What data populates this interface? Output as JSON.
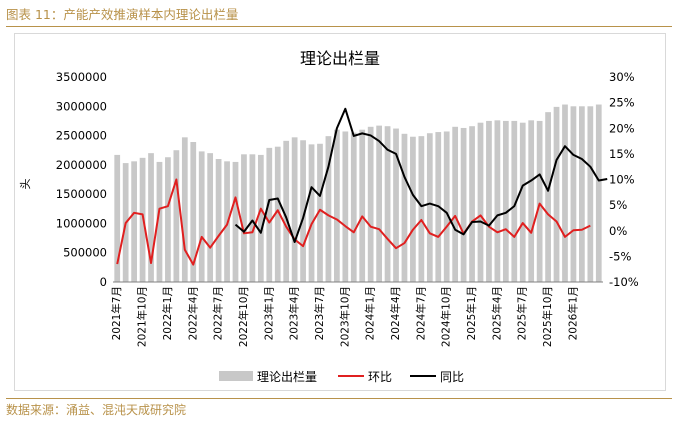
{
  "figure_caption": "图表 11：产能产效推演样本内理论出栏量",
  "source_note": "数据来源：涌益、混沌天成研究院",
  "chart_data": {
    "type": "bar+line",
    "title": "理论出栏量",
    "ylabel_left": "头",
    "y_left_range": [
      0,
      3500000
    ],
    "y_left_ticks": [
      "0",
      "500000",
      "1000000",
      "1500000",
      "2000000",
      "2500000",
      "3000000",
      "3500000"
    ],
    "y_right_range": [
      -10,
      30
    ],
    "y_right_ticks": [
      "-10%",
      "-5%",
      "0%",
      "5%",
      "10%",
      "15%",
      "20%",
      "25%",
      "30%"
    ],
    "x_tick_labels": [
      "2021年7月",
      "2021年10月",
      "2022年1月",
      "2022年4月",
      "2022年7月",
      "2022年10月",
      "2023年1月",
      "2023年4月",
      "2023年7月",
      "2023年10月",
      "2024年1月",
      "2024年4月",
      "2024年7月",
      "2024年10月",
      "2025年1月",
      "2025年4月",
      "2025年7月",
      "2025年10月",
      "2026年1月"
    ],
    "legend": [
      "理论出栏量",
      "环比",
      "同比"
    ],
    "colors": {
      "bar": "#c8c8c8",
      "mom": "#e02020",
      "yoy": "#000000"
    },
    "series": [
      {
        "name": "理论出栏量",
        "axis": "left",
        "kind": "bar",
        "values": [
          2170000,
          2030000,
          2060000,
          2120000,
          2200000,
          2050000,
          2130000,
          2250000,
          2470000,
          2390000,
          2230000,
          2200000,
          2100000,
          2060000,
          2050000,
          2180000,
          2180000,
          2170000,
          2290000,
          2310000,
          2410000,
          2470000,
          2420000,
          2350000,
          2360000,
          2490000,
          2600000,
          2570000,
          2550000,
          2600000,
          2650000,
          2670000,
          2660000,
          2620000,
          2530000,
          2480000,
          2490000,
          2540000,
          2560000,
          2570000,
          2650000,
          2630000,
          2660000,
          2720000,
          2750000,
          2760000,
          2750000,
          2750000,
          2720000,
          2760000,
          2750000,
          2900000,
          2990000,
          3030000,
          3000000,
          3000000,
          3000000,
          3030000
        ]
      },
      {
        "name": "环比",
        "axis": "right",
        "kind": "line",
        "values": [
          -6.5,
          1.5,
          3.5,
          3.2,
          -6.3,
          4.3,
          4.8,
          10.0,
          -3.7,
          -6.6,
          -1.2,
          -3.3,
          -1.0,
          1.2,
          6.5,
          -0.5,
          -0.3,
          4.3,
          1.6,
          4.0,
          0.8,
          -1.7,
          -3.0,
          1.3,
          4.1,
          3.0,
          2.2,
          0.9,
          -0.3,
          2.8,
          0.8,
          0.3,
          -1.6,
          -3.4,
          -2.4,
          0.2,
          2.1,
          -0.5,
          -1.2,
          0.8,
          2.9,
          -0.6,
          1.8,
          3.0,
          0.8,
          -0.3,
          0.3,
          -1.2,
          1.5,
          -0.4,
          5.3,
          3.2,
          1.8,
          -1.2,
          0.1,
          0.2,
          1.0
        ]
      },
      {
        "name": "同比",
        "axis": "right",
        "kind": "line",
        "start_index": 14,
        "values": [
          1.2,
          -0.2,
          2.0,
          -0.4,
          6.0,
          6.3,
          2.6,
          -2.2,
          2.5,
          8.5,
          6.8,
          12.5,
          20.0,
          23.8,
          18.5,
          19.0,
          18.6,
          17.5,
          15.8,
          15.0,
          10.5,
          7.0,
          4.8,
          5.3,
          4.8,
          3.5,
          0.2,
          -0.7,
          1.7,
          1.8,
          1.0,
          3.0,
          3.5,
          4.8,
          8.8,
          9.8,
          11.0,
          7.8,
          13.8,
          16.5,
          14.8,
          14.0,
          12.5,
          9.8,
          10.1
        ]
      }
    ]
  }
}
